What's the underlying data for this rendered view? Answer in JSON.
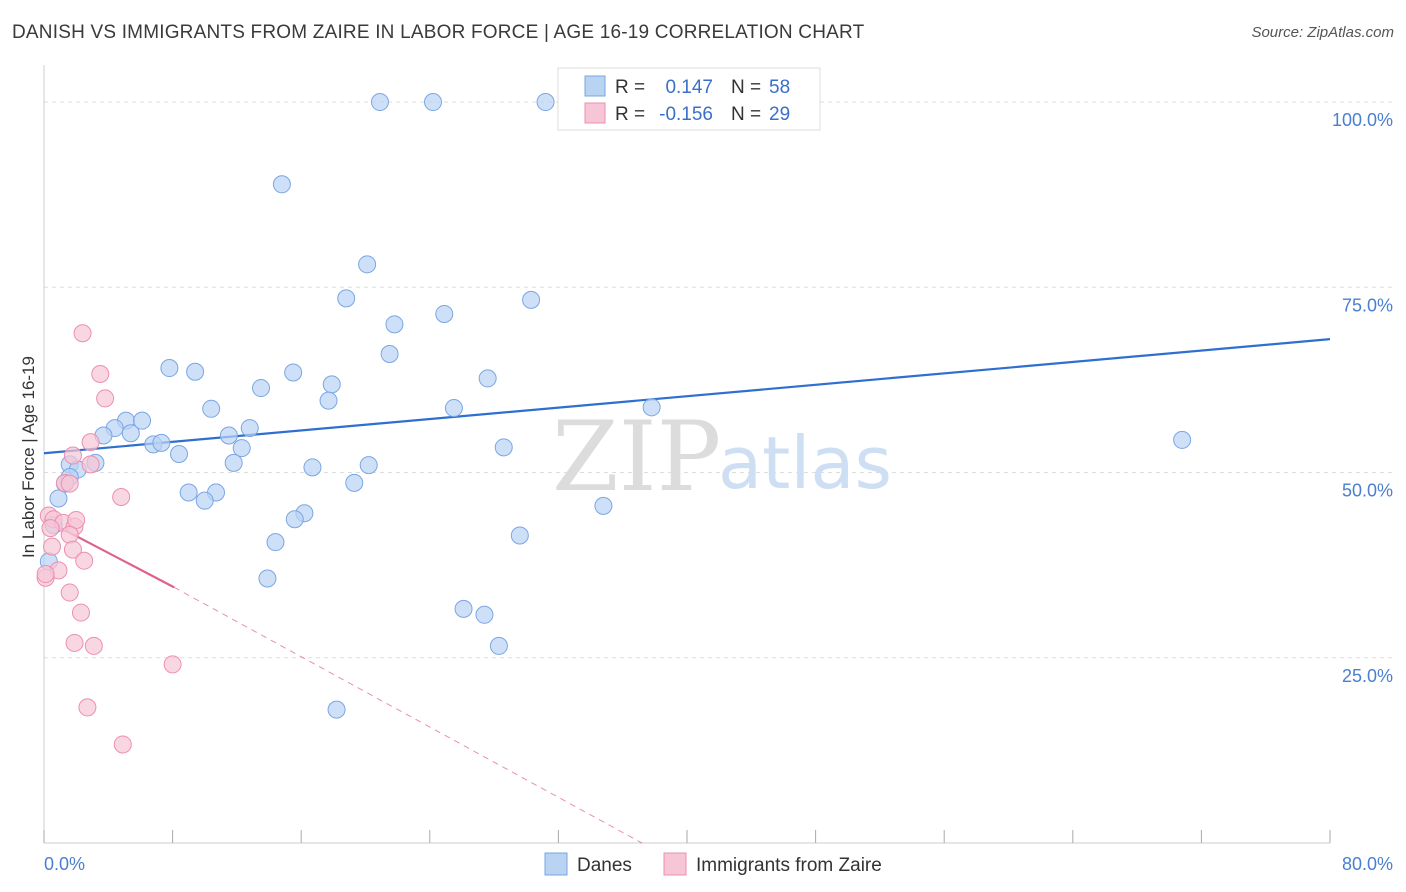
{
  "title": "DANISH VS IMMIGRANTS FROM ZAIRE IN LABOR FORCE | AGE 16-19 CORRELATION CHART",
  "source": "Source: ZipAtlas.com",
  "watermark": {
    "zip": "ZIP",
    "atlas": "atlas"
  },
  "legend": {
    "r_label": "R =",
    "n_label": "N =",
    "danes": {
      "r": "0.147",
      "n": "58"
    },
    "zaire": {
      "r": "-0.156",
      "n": "29"
    }
  },
  "bottom_legend": {
    "danes": "Danes",
    "zaire": "Immigrants from Zaire"
  },
  "colors": {
    "danes_fill": "#b9d3f3",
    "danes_stroke": "#7aa6e3",
    "danes_line": "#2f6fd0",
    "zaire_fill": "#f7c6d6",
    "zaire_stroke": "#ec8fb0",
    "zaire_line": "#e0608f",
    "grid": "#dddddd",
    "tick_text": "#4a7fd0"
  },
  "chart_data": {
    "type": "scatter",
    "title": "DANISH VS IMMIGRANTS FROM ZAIRE IN LABOR FORCE | AGE 16-19 CORRELATION CHART",
    "xlabel": "",
    "ylabel": "In Labor Force | Age 16-19",
    "xlim": [
      0,
      80
    ],
    "ylim": [
      0,
      105
    ],
    "x_tick_labels": [
      "0.0%",
      "80.0%"
    ],
    "y_ticks": [
      25,
      50,
      75,
      100
    ],
    "y_tick_labels": [
      "25.0%",
      "50.0%",
      "75.0%",
      "100.0%"
    ],
    "grid": true,
    "legend_position": "top-center",
    "series": [
      {
        "name": "Danes",
        "points": [
          [
            20.9,
            100.0
          ],
          [
            24.2,
            100.0
          ],
          [
            31.2,
            100.0
          ],
          [
            14.8,
            88.9
          ],
          [
            20.1,
            78.1
          ],
          [
            18.8,
            73.5
          ],
          [
            30.3,
            73.3
          ],
          [
            24.9,
            71.4
          ],
          [
            21.8,
            70.0
          ],
          [
            21.5,
            66.0
          ],
          [
            7.8,
            64.1
          ],
          [
            9.4,
            63.6
          ],
          [
            15.5,
            63.5
          ],
          [
            27.6,
            62.7
          ],
          [
            13.5,
            61.4
          ],
          [
            17.9,
            61.9
          ],
          [
            17.7,
            59.7
          ],
          [
            10.4,
            58.6
          ],
          [
            25.5,
            58.7
          ],
          [
            37.8,
            58.8
          ],
          [
            5.1,
            57.0
          ],
          [
            6.1,
            57.0
          ],
          [
            4.4,
            56.0
          ],
          [
            5.4,
            55.3
          ],
          [
            3.7,
            55.0
          ],
          [
            12.8,
            56.0
          ],
          [
            11.5,
            55.0
          ],
          [
            6.8,
            53.8
          ],
          [
            7.3,
            54.0
          ],
          [
            12.3,
            53.3
          ],
          [
            8.4,
            52.5
          ],
          [
            28.6,
            53.4
          ],
          [
            70.8,
            54.4
          ],
          [
            1.6,
            51.1
          ],
          [
            3.2,
            51.3
          ],
          [
            11.8,
            51.3
          ],
          [
            20.2,
            51.0
          ],
          [
            16.7,
            50.7
          ],
          [
            2.1,
            50.4
          ],
          [
            1.6,
            49.4
          ],
          [
            19.3,
            48.6
          ],
          [
            1.3,
            48.5
          ],
          [
            9.0,
            47.3
          ],
          [
            10.7,
            47.3
          ],
          [
            0.9,
            46.5
          ],
          [
            10.0,
            46.2
          ],
          [
            34.8,
            45.5
          ],
          [
            16.2,
            44.5
          ],
          [
            15.6,
            43.7
          ],
          [
            0.6,
            42.9
          ],
          [
            29.6,
            41.5
          ],
          [
            14.4,
            40.6
          ],
          [
            13.9,
            35.7
          ],
          [
            26.1,
            31.6
          ],
          [
            27.4,
            30.8
          ],
          [
            28.3,
            26.6
          ],
          [
            18.2,
            18.0
          ],
          [
            0.3,
            38.0
          ]
        ]
      },
      {
        "name": "Immigrants from Zaire",
        "points": [
          [
            2.4,
            68.8
          ],
          [
            3.5,
            63.3
          ],
          [
            3.8,
            60.0
          ],
          [
            2.9,
            54.1
          ],
          [
            1.8,
            52.3
          ],
          [
            2.9,
            51.1
          ],
          [
            1.3,
            48.6
          ],
          [
            1.6,
            48.5
          ],
          [
            4.8,
            46.7
          ],
          [
            0.3,
            44.2
          ],
          [
            0.6,
            43.7
          ],
          [
            1.2,
            43.2
          ],
          [
            1.9,
            42.7
          ],
          [
            2.0,
            43.6
          ],
          [
            0.4,
            42.5
          ],
          [
            1.6,
            41.6
          ],
          [
            0.5,
            40.0
          ],
          [
            1.8,
            39.6
          ],
          [
            2.5,
            38.1
          ],
          [
            0.9,
            36.8
          ],
          [
            0.1,
            35.8
          ],
          [
            1.6,
            33.8
          ],
          [
            2.3,
            31.1
          ],
          [
            1.9,
            27.0
          ],
          [
            3.1,
            26.6
          ],
          [
            8.0,
            24.1
          ],
          [
            2.7,
            18.3
          ],
          [
            4.9,
            13.3
          ],
          [
            0.1,
            36.3
          ]
        ]
      }
    ],
    "trend_lines": [
      {
        "series": "Danes",
        "from": [
          0,
          52.6
        ],
        "to": [
          80,
          68.0
        ],
        "style": "solid"
      },
      {
        "series": "Immigrants from Zaire",
        "from": [
          0,
          43.7
        ],
        "to": [
          8.1,
          34.5
        ],
        "style": "solid"
      },
      {
        "series": "Immigrants from Zaire",
        "from": [
          8.1,
          34.5
        ],
        "to": [
          37.2,
          0
        ],
        "style": "dashed"
      }
    ]
  }
}
